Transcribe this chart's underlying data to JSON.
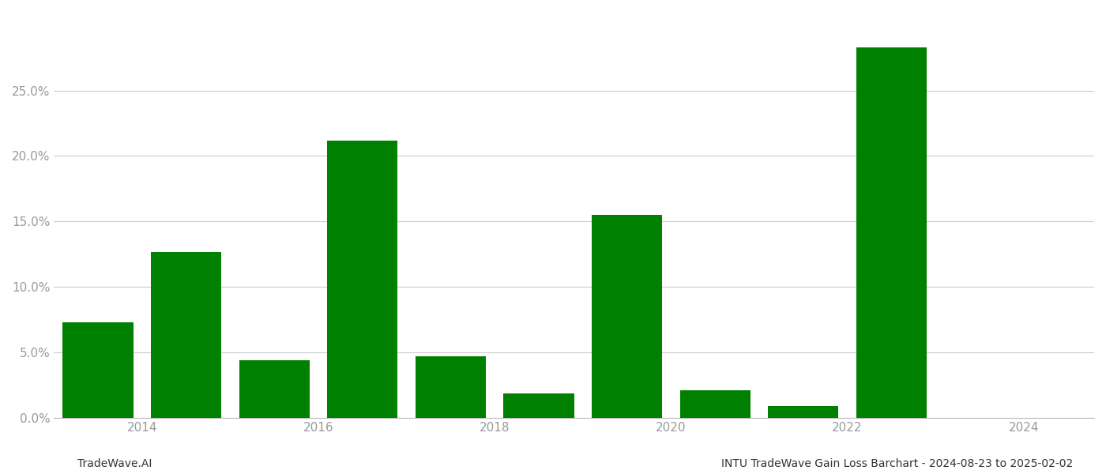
{
  "bar_positions": [
    2013.5,
    2014.5,
    2015.5,
    2016.5,
    2017.5,
    2018.5,
    2019.5,
    2020.5,
    2021.5,
    2022.5
  ],
  "values": [
    0.073,
    0.127,
    0.044,
    0.212,
    0.047,
    0.019,
    0.155,
    0.021,
    0.009,
    0.283
  ],
  "bar_color": "#008000",
  "background_color": "#ffffff",
  "ylim": [
    0,
    0.31
  ],
  "yticks": [
    0.0,
    0.05,
    0.1,
    0.15,
    0.2,
    0.25
  ],
  "xtick_labels": [
    "2014",
    "2016",
    "2018",
    "2020",
    "2022",
    "2024"
  ],
  "xtick_positions": [
    2014,
    2016,
    2018,
    2020,
    2022,
    2024
  ],
  "xlim": [
    2013.0,
    2024.8
  ],
  "bar_width": 0.8,
  "footer_left": "TradeWave.AI",
  "footer_right": "INTU TradeWave Gain Loss Barchart - 2024-08-23 to 2025-02-02",
  "grid_color": "#cccccc",
  "tick_color": "#999999",
  "footer_fontsize": 10,
  "tick_fontsize": 11
}
